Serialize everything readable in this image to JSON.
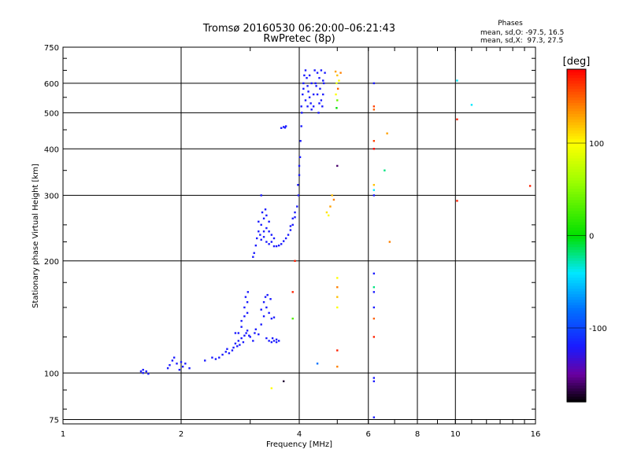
{
  "chart_data": {
    "type": "scatter",
    "title": "Tromsø 20160530 06:20:00–06:21:43",
    "subtitle": "RwPretec (8p)",
    "xlabel": "Frequency [MHz]",
    "ylabel": "Stationary phase Virtual Height [km]",
    "x_scale": "log",
    "y_scale": "log",
    "xlim": [
      1,
      16
    ],
    "ylim": [
      73,
      750
    ],
    "x_ticks": [
      1,
      2,
      4,
      6,
      8,
      10,
      16
    ],
    "x_tick_labels": [
      "1",
      "2",
      "4",
      "6",
      "8",
      "10",
      "16"
    ],
    "y_ticks": [
      75,
      100,
      200,
      300,
      400,
      500,
      600,
      750
    ],
    "y_tick_labels": [
      "75",
      "100",
      "200",
      "300",
      "400",
      "500",
      "600",
      "750"
    ],
    "grid": true,
    "phase_info": {
      "heading": "Phases",
      "line1": "mean, sd,O: -97.5, 16.5",
      "line2": "mean, sd,X:  97.3, 27.5"
    },
    "colorbar": {
      "label": "[deg]",
      "range": [
        -180,
        180
      ],
      "ticks": [
        100,
        0,
        -100
      ],
      "tick_labels": [
        "100",
        "0",
        "-100"
      ],
      "stops": [
        {
          "v": -180,
          "c": "#000000"
        },
        {
          "v": -150,
          "c": "#6a00a0"
        },
        {
          "v": -120,
          "c": "#1a1aff"
        },
        {
          "v": -80,
          "c": "#0070ff"
        },
        {
          "v": -40,
          "c": "#00e8ff"
        },
        {
          "v": 0,
          "c": "#00e000"
        },
        {
          "v": 60,
          "c": "#a0ff00"
        },
        {
          "v": 100,
          "c": "#ffff00"
        },
        {
          "v": 140,
          "c": "#ff8000"
        },
        {
          "v": 180,
          "c": "#ff0000"
        }
      ]
    },
    "o_mode_color": "#1a1aff",
    "series": [
      {
        "mode": "O",
        "phase": -100,
        "points": [
          [
            1.58,
            101
          ],
          [
            1.6,
            102
          ],
          [
            1.63,
            101
          ],
          [
            1.6,
            100
          ],
          [
            1.65,
            99.5
          ],
          [
            1.85,
            103
          ],
          [
            1.87,
            105
          ],
          [
            1.9,
            108
          ],
          [
            1.95,
            106
          ],
          [
            2.0,
            107
          ],
          [
            2.02,
            104
          ],
          [
            1.98,
            102
          ],
          [
            2.05,
            106
          ],
          [
            2.1,
            103
          ],
          [
            1.92,
            110
          ],
          [
            2.3,
            108
          ],
          [
            2.4,
            110
          ],
          [
            2.45,
            109
          ],
          [
            2.5,
            110
          ],
          [
            2.55,
            112
          ],
          [
            2.6,
            114
          ],
          [
            2.62,
            116
          ],
          [
            2.65,
            113
          ],
          [
            2.7,
            115
          ],
          [
            2.72,
            117
          ],
          [
            2.75,
            120
          ],
          [
            2.78,
            118
          ],
          [
            2.8,
            122
          ],
          [
            2.82,
            119
          ],
          [
            2.85,
            124
          ],
          [
            2.88,
            121
          ],
          [
            2.9,
            126
          ],
          [
            2.93,
            128
          ],
          [
            2.95,
            130
          ],
          [
            2.98,
            126
          ],
          [
            2.85,
            138
          ],
          [
            2.9,
            142
          ],
          [
            2.95,
            145
          ],
          [
            2.9,
            150
          ],
          [
            2.95,
            155
          ],
          [
            2.92,
            160
          ],
          [
            2.96,
            165
          ],
          [
            2.85,
            133
          ],
          [
            2.8,
            128
          ],
          [
            2.75,
            128
          ],
          [
            3.0,
            125
          ],
          [
            3.05,
            122
          ],
          [
            3.08,
            128
          ],
          [
            3.1,
            131
          ],
          [
            3.15,
            127
          ],
          [
            3.2,
            135
          ],
          [
            3.25,
            142
          ],
          [
            3.2,
            148
          ],
          [
            3.25,
            155
          ],
          [
            3.28,
            160
          ],
          [
            3.3,
            150
          ],
          [
            3.35,
            145
          ],
          [
            3.4,
            140
          ],
          [
            3.38,
            158
          ],
          [
            3.32,
            162
          ],
          [
            3.45,
            141
          ],
          [
            3.3,
            124
          ],
          [
            3.35,
            122
          ],
          [
            3.4,
            121
          ],
          [
            3.45,
            122
          ],
          [
            3.5,
            123
          ],
          [
            3.55,
            122
          ],
          [
            3.42,
            124
          ],
          [
            3.5,
            121
          ],
          [
            3.05,
            205
          ],
          [
            3.07,
            210
          ],
          [
            3.1,
            220
          ],
          [
            3.12,
            230
          ],
          [
            3.15,
            240
          ],
          [
            3.18,
            235
          ],
          [
            3.2,
            250
          ],
          [
            3.25,
            260
          ],
          [
            3.22,
            270
          ],
          [
            3.28,
            275
          ],
          [
            3.3,
            245
          ],
          [
            3.15,
            255
          ],
          [
            3.2,
            228
          ],
          [
            3.25,
            232
          ],
          [
            3.3,
            225
          ],
          [
            3.35,
            222
          ],
          [
            3.4,
            225
          ],
          [
            3.45,
            219
          ],
          [
            3.5,
            219
          ],
          [
            3.55,
            220
          ],
          [
            3.6,
            222
          ],
          [
            3.65,
            226
          ],
          [
            3.7,
            230
          ],
          [
            3.75,
            235
          ],
          [
            3.8,
            242
          ],
          [
            3.85,
            250
          ],
          [
            3.9,
            262
          ],
          [
            3.95,
            280
          ],
          [
            3.98,
            300
          ],
          [
            4.0,
            340
          ],
          [
            4.02,
            380
          ],
          [
            4.03,
            420
          ],
          [
            4.05,
            460
          ],
          [
            4.06,
            500
          ],
          [
            4.0,
            360
          ],
          [
            3.97,
            320
          ],
          [
            3.9,
            270
          ],
          [
            3.85,
            260
          ],
          [
            3.8,
            248
          ],
          [
            3.35,
            240
          ],
          [
            3.4,
            235
          ],
          [
            3.45,
            230
          ],
          [
            3.3,
            265
          ],
          [
            3.35,
            255
          ],
          [
            3.2,
            300
          ],
          [
            3.25,
            240
          ],
          [
            3.6,
            455
          ],
          [
            3.65,
            458
          ],
          [
            3.7,
            460
          ],
          [
            3.68,
            456
          ],
          [
            4.05,
            520
          ],
          [
            4.08,
            560
          ],
          [
            4.1,
            600
          ],
          [
            4.12,
            630
          ],
          [
            4.15,
            650
          ],
          [
            4.18,
            620
          ],
          [
            4.2,
            590
          ],
          [
            4.22,
            570
          ],
          [
            4.25,
            550
          ],
          [
            4.28,
            530
          ],
          [
            4.3,
            510
          ],
          [
            4.35,
            560
          ],
          [
            4.4,
            600
          ],
          [
            4.45,
            640
          ],
          [
            4.5,
            620
          ],
          [
            4.52,
            580
          ],
          [
            4.55,
            540
          ],
          [
            4.58,
            520
          ],
          [
            4.6,
            560
          ],
          [
            4.62,
            600
          ],
          [
            4.65,
            640
          ],
          [
            4.38,
            650
          ],
          [
            4.3,
            600
          ],
          [
            4.25,
            630
          ],
          [
            4.45,
            560
          ],
          [
            4.5,
            530
          ],
          [
            4.15,
            540
          ],
          [
            4.2,
            520
          ],
          [
            4.1,
            580
          ],
          [
            4.6,
            610
          ],
          [
            4.55,
            650
          ],
          [
            4.42,
            590
          ],
          [
            4.35,
            520
          ],
          [
            4.48,
            500
          ],
          [
            6.2,
            600
          ],
          [
            6.2,
            300
          ],
          [
            6.2,
            185
          ],
          [
            6.2,
            165
          ],
          [
            6.2,
            150
          ],
          [
            6.2,
            97
          ],
          [
            6.2,
            95
          ],
          [
            6.2,
            76
          ]
        ]
      },
      {
        "mode": "X",
        "points": [
          [
            4.95,
            645,
            130
          ],
          [
            5.0,
            630,
            120
          ],
          [
            5.05,
            610,
            100
          ],
          [
            4.98,
            600,
            90
          ],
          [
            5.1,
            640,
            140
          ],
          [
            5.02,
            580,
            150
          ],
          [
            4.96,
            560,
            100
          ],
          [
            5.0,
            540,
            40
          ],
          [
            4.98,
            515,
            0
          ],
          [
            5.0,
            360,
            -160
          ],
          [
            4.85,
            300,
            120
          ],
          [
            4.7,
            270,
            110
          ],
          [
            4.75,
            265,
            100
          ],
          [
            4.9,
            292,
            140
          ],
          [
            4.8,
            280,
            130
          ],
          [
            5.0,
            180,
            100
          ],
          [
            5.0,
            170,
            140
          ],
          [
            5.0,
            160,
            120
          ],
          [
            5.0,
            150,
            100
          ],
          [
            5.0,
            115,
            170
          ],
          [
            5.0,
            104,
            140
          ],
          [
            3.9,
            200,
            170
          ],
          [
            3.85,
            165,
            170
          ],
          [
            3.85,
            140,
            30
          ],
          [
            3.65,
            95,
            -170
          ],
          [
            3.4,
            91,
            100
          ],
          [
            4.45,
            106,
            -80
          ],
          [
            6.2,
            520,
            160
          ],
          [
            6.2,
            510,
            150
          ],
          [
            6.2,
            420,
            160
          ],
          [
            6.2,
            400,
            180
          ],
          [
            6.2,
            320,
            120
          ],
          [
            6.2,
            310,
            -40
          ],
          [
            6.2,
            170,
            -20
          ],
          [
            6.2,
            140,
            150
          ],
          [
            6.2,
            125,
            170
          ],
          [
            6.6,
            350,
            -20
          ],
          [
            6.7,
            440,
            130
          ],
          [
            6.8,
            225,
            140
          ],
          [
            10.1,
            610,
            -40
          ],
          [
            10.1,
            480,
            170
          ],
          [
            10.1,
            290,
            170
          ],
          [
            11.0,
            525,
            -40
          ],
          [
            15.5,
            318,
            170
          ]
        ]
      }
    ]
  }
}
